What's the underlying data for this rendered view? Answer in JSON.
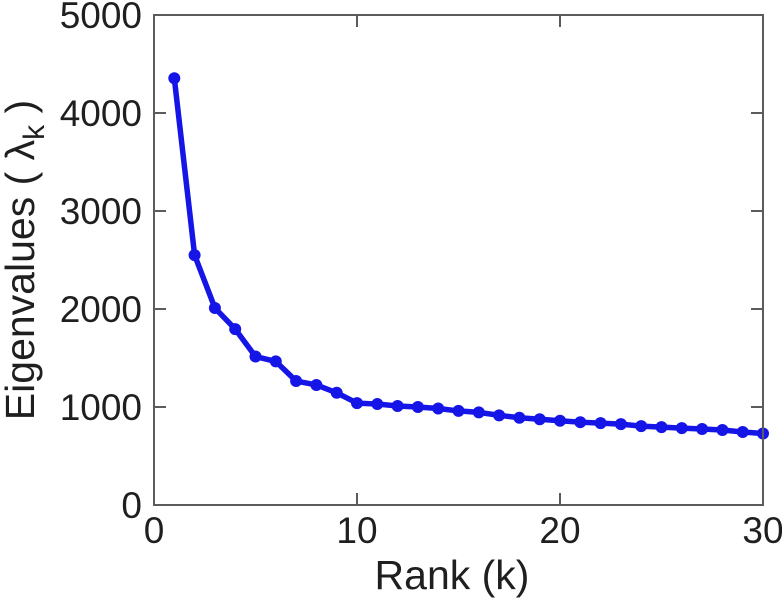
{
  "chart_data": {
    "type": "line",
    "title": "",
    "xlabel": "Rank (k)",
    "ylabel": "Eigenvalues ( λ_k )",
    "ylabel_parts": {
      "prefix": "Eigenvalues ( ",
      "symbol": "λ",
      "subscript": "k",
      "suffix": " )"
    },
    "x": [
      1,
      2,
      3,
      4,
      5,
      6,
      7,
      8,
      9,
      10,
      11,
      12,
      13,
      14,
      15,
      16,
      17,
      18,
      19,
      20,
      21,
      22,
      23,
      24,
      25,
      26,
      27,
      28,
      29,
      30
    ],
    "values": [
      4355,
      2550,
      2010,
      1795,
      1515,
      1465,
      1265,
      1225,
      1145,
      1040,
      1030,
      1010,
      1000,
      985,
      960,
      945,
      915,
      890,
      875,
      860,
      845,
      835,
      825,
      805,
      795,
      785,
      775,
      765,
      745,
      730
    ],
    "series_name": "eigenvalues",
    "xlim": [
      0,
      30
    ],
    "ylim": [
      0,
      5000
    ],
    "xticks": [
      0,
      10,
      20,
      30
    ],
    "xtick_labels": [
      "0",
      "10",
      "20",
      "30"
    ],
    "yticks": [
      0,
      1000,
      2000,
      3000,
      4000,
      5000
    ],
    "ytick_labels": [
      "0",
      "1000",
      "2000",
      "3000",
      "4000",
      "5000"
    ],
    "grid": false,
    "legend": null,
    "box": true,
    "tick_direction": "in",
    "line_color": "#1515e8",
    "marker": "circle-filled",
    "axis_color": "#5c5c5c",
    "text_color": "#1f1f1f",
    "background_color": "#ffffff"
  }
}
